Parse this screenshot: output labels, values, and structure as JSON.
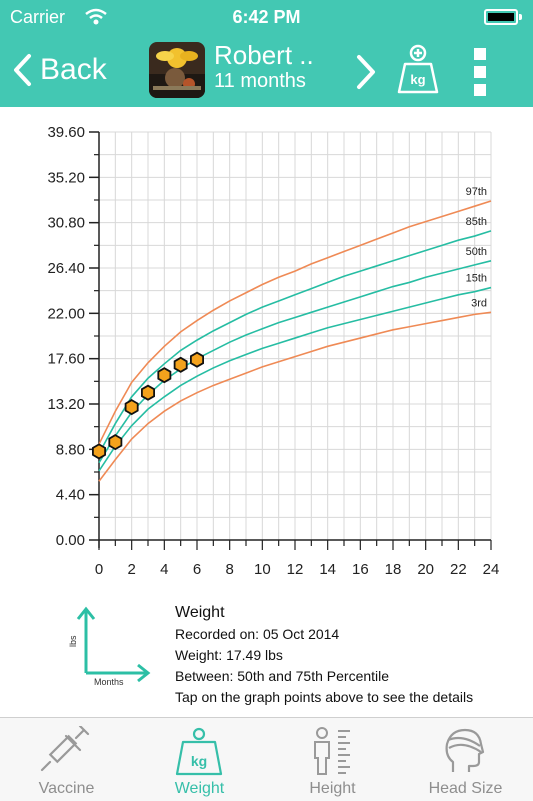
{
  "status_bar": {
    "carrier": "Carrier",
    "time": "6:42 PM",
    "battery_level": 1.0
  },
  "nav": {
    "back_label": "Back",
    "child_name": "Robert ..",
    "child_age": "11 months",
    "add_icon_label": "kg"
  },
  "colors": {
    "accent": "#43c8b3",
    "teal_line": "#26bda3",
    "orange_line": "#ef8a55",
    "point_fill": "#f4a21c"
  },
  "chart_data": {
    "type": "line",
    "x_ticks": [
      "0",
      "2",
      "4",
      "6",
      "8",
      "10",
      "12",
      "14",
      "16",
      "18",
      "20",
      "22",
      "24"
    ],
    "y_ticks": [
      "0.00",
      "4.40",
      "8.80",
      "13.20",
      "17.60",
      "22.00",
      "26.40",
      "30.80",
      "35.20",
      "39.60"
    ],
    "xlim": [
      0,
      24
    ],
    "ylim": [
      0,
      39.6
    ],
    "grid": true,
    "x": [
      0,
      1,
      2,
      3,
      4,
      5,
      6,
      7,
      8,
      9,
      10,
      11,
      12,
      13,
      14,
      15,
      16,
      17,
      18,
      19,
      20,
      21,
      22,
      23,
      24
    ],
    "series": [
      {
        "name": "97th",
        "color": "orange",
        "values": [
          9.3,
          12.5,
          15.3,
          17.2,
          18.8,
          20.2,
          21.3,
          22.3,
          23.2,
          24.0,
          24.8,
          25.5,
          26.1,
          26.8,
          27.4,
          28.0,
          28.6,
          29.2,
          29.8,
          30.4,
          30.9,
          31.4,
          31.9,
          32.4,
          32.9
        ]
      },
      {
        "name": "85th",
        "color": "teal",
        "values": [
          8.4,
          11.3,
          13.9,
          15.7,
          17.1,
          18.4,
          19.4,
          20.3,
          21.1,
          21.9,
          22.6,
          23.2,
          23.8,
          24.4,
          25.0,
          25.6,
          26.1,
          26.6,
          27.1,
          27.6,
          28.1,
          28.6,
          29.1,
          29.5,
          30.0
        ]
      },
      {
        "name": "50th",
        "color": "teal",
        "values": [
          7.5,
          10.1,
          12.4,
          14.1,
          15.5,
          16.6,
          17.6,
          18.4,
          19.2,
          19.9,
          20.5,
          21.1,
          21.6,
          22.1,
          22.6,
          23.1,
          23.6,
          24.1,
          24.6,
          25.0,
          25.5,
          25.9,
          26.3,
          26.7,
          27.1
        ]
      },
      {
        "name": "15th",
        "color": "teal",
        "values": [
          6.7,
          9.1,
          11.1,
          12.7,
          13.9,
          15.0,
          15.9,
          16.7,
          17.4,
          18.0,
          18.6,
          19.1,
          19.6,
          20.1,
          20.6,
          21.0,
          21.4,
          21.8,
          22.2,
          22.6,
          23.0,
          23.4,
          23.8,
          24.1,
          24.5
        ]
      },
      {
        "name": "3rd",
        "color": "orange",
        "values": [
          5.7,
          7.8,
          9.8,
          11.3,
          12.5,
          13.5,
          14.3,
          15.0,
          15.6,
          16.2,
          16.8,
          17.3,
          17.8,
          18.3,
          18.8,
          19.2,
          19.6,
          20.0,
          20.4,
          20.7,
          21.0,
          21.3,
          21.6,
          21.9,
          22.1
        ]
      }
    ],
    "measurements": {
      "x": [
        0,
        1,
        2,
        3,
        4,
        5,
        6
      ],
      "y": [
        8.6,
        9.5,
        12.9,
        14.3,
        16.0,
        17.0,
        17.5
      ]
    }
  },
  "info": {
    "axes_y_label": "lbs",
    "axes_x_label": "Months",
    "title": "Weight",
    "recorded": "Recorded on: 05 Oct 2014",
    "weight": "Weight: 17.49 lbs",
    "between": "Between: 50th and  75th Percentile",
    "hint": "Tap on the graph points above to see the details"
  },
  "tabs": [
    {
      "label": "Vaccine",
      "icon": "syringe-icon",
      "active": false
    },
    {
      "label": "Weight",
      "icon": "weight-icon",
      "active": true
    },
    {
      "label": "Height",
      "icon": "height-icon",
      "active": false
    },
    {
      "label": "Head Size",
      "icon": "head-icon",
      "active": false
    }
  ]
}
